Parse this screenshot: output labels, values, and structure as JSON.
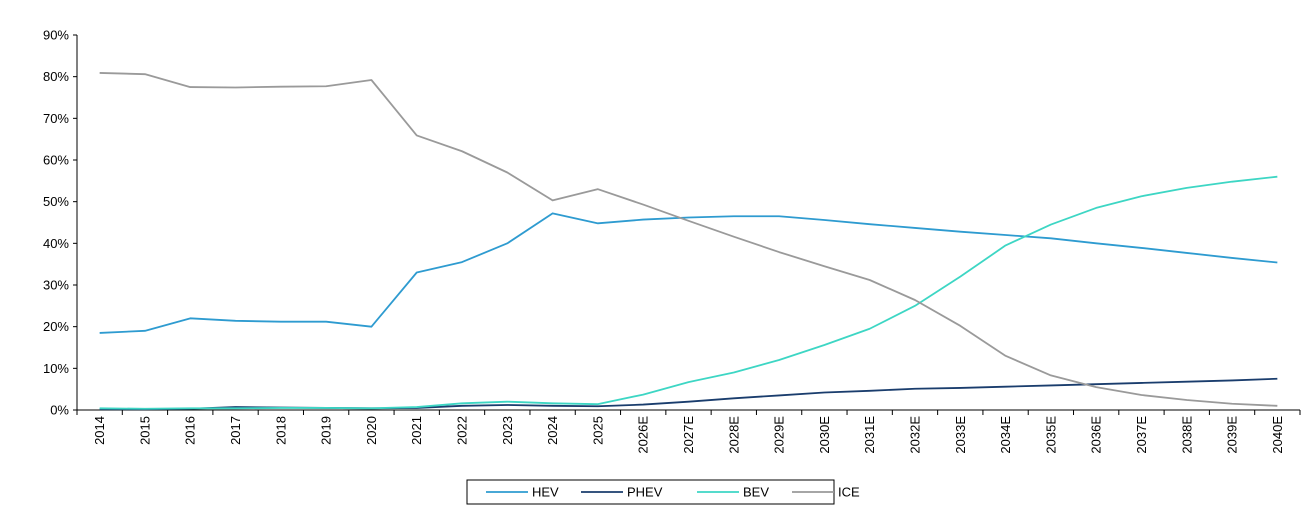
{
  "chart_data": {
    "type": "line",
    "categories": [
      "2014",
      "2015",
      "2016",
      "2017",
      "2018",
      "2019",
      "2020",
      "2021",
      "2022",
      "2023",
      "2024",
      "2025",
      "2026E",
      "2027E",
      "2028E",
      "2029E",
      "2030E",
      "2031E",
      "2032E",
      "2033E",
      "2034E",
      "2035E",
      "2036E",
      "2037E",
      "2038E",
      "2039E",
      "2040E"
    ],
    "yticks": [
      "0%",
      "10%",
      "20%",
      "30%",
      "40%",
      "50%",
      "60%",
      "70%",
      "80%",
      "90%"
    ],
    "ylim": [
      0,
      90
    ],
    "grid": false,
    "legend_position": "bottom",
    "series": [
      {
        "name": "HEV",
        "color": "#2E9BD0",
        "values": [
          18.5,
          19,
          22,
          21.4,
          21.2,
          21.2,
          20,
          33,
          35.5,
          40,
          47.2,
          44.8,
          45.7,
          46.2,
          46.5,
          46.5,
          45.6,
          44.6,
          43.7,
          42.8,
          42,
          41.2,
          40,
          38.9,
          37.7,
          36.5,
          35.4
        ]
      },
      {
        "name": "PHEV",
        "color": "#1A3D6D",
        "values": [
          0.2,
          0.2,
          0.3,
          0.7,
          0.6,
          0.5,
          0.4,
          0.5,
          1,
          1.2,
          1,
          0.9,
          1.3,
          2,
          2.8,
          3.5,
          4.2,
          4.6,
          5.1,
          5.3,
          5.6,
          5.9,
          6.2,
          6.5,
          6.8,
          7.1,
          7.5
        ]
      },
      {
        "name": "BEV",
        "color": "#3DD6C4",
        "values": [
          0.4,
          0.3,
          0.4,
          0.4,
          0.5,
          0.5,
          0.4,
          0.7,
          1.6,
          2,
          1.6,
          1.4,
          3.7,
          6.7,
          9,
          12,
          15.6,
          19.5,
          25,
          32,
          39.5,
          44.5,
          48.5,
          51.3,
          53.3,
          54.8,
          56
        ]
      },
      {
        "name": "ICE",
        "color": "#9A9A9A",
        "values": [
          80.9,
          80.6,
          77.5,
          77.4,
          77.6,
          77.7,
          79.2,
          65.9,
          62.1,
          57,
          50.3,
          53,
          49.3,
          45.4,
          41.6,
          37.9,
          34.5,
          31.2,
          26.4,
          20.2,
          13,
          8.3,
          5.5,
          3.6,
          2.4,
          1.5,
          1
        ]
      }
    ]
  }
}
